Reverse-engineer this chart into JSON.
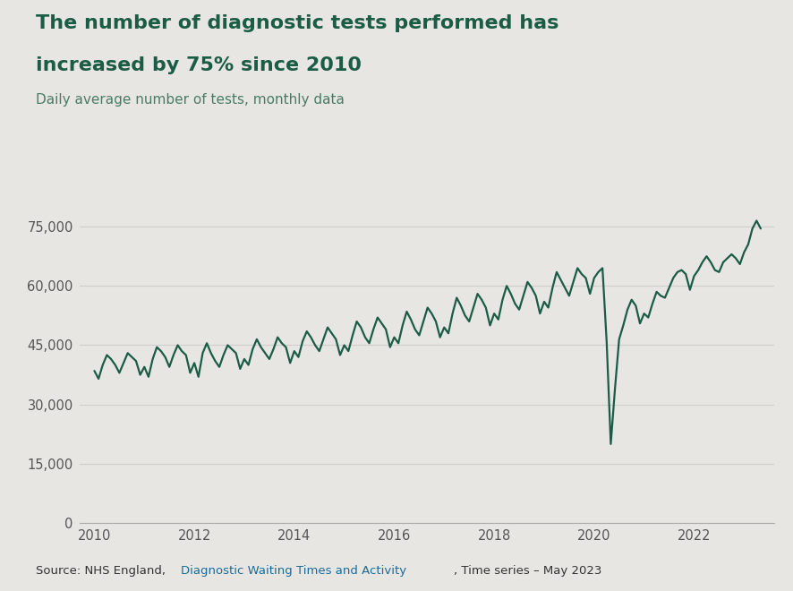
{
  "title_line1": "The number of diagnostic tests performed has",
  "title_line2": "increased by 75% since 2010",
  "subtitle": "Daily average number of tests, monthly data",
  "line_color": "#1b5c45",
  "background_color": "#e8e6e3",
  "title_color": "#1b5c45",
  "subtitle_color": "#4a7c65",
  "source_color": "#333333",
  "link_color": "#1a6b9a",
  "grid_color": "#d0ceca",
  "axis_color": "#aaaaaa",
  "ylim": [
    0,
    80000
  ],
  "yticks": [
    0,
    15000,
    30000,
    45000,
    60000,
    75000
  ],
  "ytick_labels": [
    "0",
    "15,000",
    "30,000",
    "45,000",
    "60,000",
    "75,000"
  ],
  "xticks": [
    2010,
    2012,
    2014,
    2016,
    2018,
    2020,
    2022
  ],
  "xlim_min": 2009.7,
  "xlim_max": 2023.6,
  "dates": [
    2010.0,
    2010.083,
    2010.167,
    2010.25,
    2010.333,
    2010.417,
    2010.5,
    2010.583,
    2010.667,
    2010.75,
    2010.833,
    2010.917,
    2011.0,
    2011.083,
    2011.167,
    2011.25,
    2011.333,
    2011.417,
    2011.5,
    2011.583,
    2011.667,
    2011.75,
    2011.833,
    2011.917,
    2012.0,
    2012.083,
    2012.167,
    2012.25,
    2012.333,
    2012.417,
    2012.5,
    2012.583,
    2012.667,
    2012.75,
    2012.833,
    2012.917,
    2013.0,
    2013.083,
    2013.167,
    2013.25,
    2013.333,
    2013.417,
    2013.5,
    2013.583,
    2013.667,
    2013.75,
    2013.833,
    2013.917,
    2014.0,
    2014.083,
    2014.167,
    2014.25,
    2014.333,
    2014.417,
    2014.5,
    2014.583,
    2014.667,
    2014.75,
    2014.833,
    2014.917,
    2015.0,
    2015.083,
    2015.167,
    2015.25,
    2015.333,
    2015.417,
    2015.5,
    2015.583,
    2015.667,
    2015.75,
    2015.833,
    2015.917,
    2016.0,
    2016.083,
    2016.167,
    2016.25,
    2016.333,
    2016.417,
    2016.5,
    2016.583,
    2016.667,
    2016.75,
    2016.833,
    2016.917,
    2017.0,
    2017.083,
    2017.167,
    2017.25,
    2017.333,
    2017.417,
    2017.5,
    2017.583,
    2017.667,
    2017.75,
    2017.833,
    2017.917,
    2018.0,
    2018.083,
    2018.167,
    2018.25,
    2018.333,
    2018.417,
    2018.5,
    2018.583,
    2018.667,
    2018.75,
    2018.833,
    2018.917,
    2019.0,
    2019.083,
    2019.167,
    2019.25,
    2019.333,
    2019.417,
    2019.5,
    2019.583,
    2019.667,
    2019.75,
    2019.833,
    2019.917,
    2020.0,
    2020.083,
    2020.167,
    2020.25,
    2020.333,
    2020.417,
    2020.5,
    2020.583,
    2020.667,
    2020.75,
    2020.833,
    2020.917,
    2021.0,
    2021.083,
    2021.167,
    2021.25,
    2021.333,
    2021.417,
    2021.5,
    2021.583,
    2021.667,
    2021.75,
    2021.833,
    2021.917,
    2022.0,
    2022.083,
    2022.167,
    2022.25,
    2022.333,
    2022.417,
    2022.5,
    2022.583,
    2022.667,
    2022.75,
    2022.833,
    2022.917,
    2023.0,
    2023.083,
    2023.167,
    2023.25,
    2023.333
  ],
  "values": [
    38500,
    36500,
    40000,
    42500,
    41500,
    40000,
    38000,
    40500,
    43000,
    42000,
    41000,
    37500,
    39500,
    37000,
    41500,
    44500,
    43500,
    42000,
    39500,
    42500,
    45000,
    43500,
    42500,
    38000,
    40500,
    37000,
    43000,
    45500,
    43000,
    41000,
    39500,
    42500,
    45000,
    44000,
    43000,
    39000,
    41500,
    40000,
    44000,
    46500,
    44500,
    43000,
    41500,
    44000,
    47000,
    45500,
    44500,
    40500,
    43500,
    42000,
    46000,
    48500,
    47000,
    45000,
    43500,
    46500,
    49500,
    48000,
    46500,
    42500,
    45000,
    43500,
    47500,
    51000,
    49500,
    47000,
    45500,
    49000,
    52000,
    50500,
    49000,
    44500,
    47000,
    45500,
    50000,
    53500,
    51500,
    49000,
    47500,
    51000,
    54500,
    53000,
    51000,
    47000,
    49500,
    48000,
    53000,
    57000,
    55000,
    52500,
    51000,
    54500,
    58000,
    56500,
    54500,
    50000,
    53000,
    51500,
    56500,
    60000,
    58000,
    55500,
    54000,
    57500,
    61000,
    59500,
    57500,
    53000,
    56000,
    54500,
    59500,
    63500,
    61500,
    59500,
    57500,
    61000,
    64500,
    63000,
    62000,
    58000,
    62000,
    63500,
    64500,
    46000,
    20000,
    34000,
    46500,
    50000,
    54000,
    56500,
    55000,
    50500,
    53000,
    52000,
    55500,
    58500,
    57500,
    57000,
    59500,
    62000,
    63500,
    64000,
    63000,
    59000,
    62500,
    64000,
    66000,
    67500,
    66000,
    64000,
    63500,
    66000,
    67000,
    68000,
    67000,
    65500,
    68500,
    70500,
    74500,
    76500,
    74500
  ]
}
